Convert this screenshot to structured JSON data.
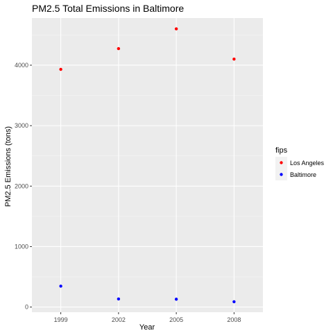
{
  "chart_data": {
    "type": "scatter",
    "title": "PM2.5 Total Emissions in Baltimore",
    "xlabel": "Year",
    "ylabel": "PM2.5 Emissions (tons)",
    "x": [
      "1999",
      "2002",
      "2005",
      "2008"
    ],
    "yticks": [
      0,
      1000,
      2000,
      3000,
      4000
    ],
    "ylim": [
      -85,
      4780
    ],
    "grid": true,
    "legend": {
      "title": "fips",
      "position": "right"
    },
    "series": [
      {
        "name": "Los Angeles",
        "color": "#ff0000",
        "values": [
          3931,
          4274,
          4601,
          4101
        ]
      },
      {
        "name": "Baltimore",
        "color": "#0000ff",
        "values": [
          346,
          134,
          130,
          88
        ]
      }
    ]
  }
}
